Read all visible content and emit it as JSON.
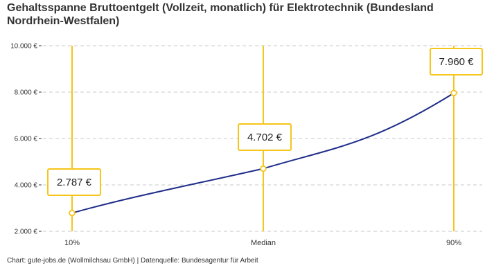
{
  "title": "Gehaltsspanne Bruttoentgelt (Vollzeit, monatlich) für Elektrotechnik (Bundesland Nordrhein-Westfalen)",
  "source": "Chart: gute-jobs.de (Wollmilchsau GmbH) | Datenquelle: Bundesagentur für Arbeit",
  "colors": {
    "line": "#1f2d8a",
    "accent": "#f5c518",
    "grid": "#c8c8c8",
    "axis": "#333333"
  },
  "chart_data": {
    "type": "line",
    "categories": [
      "10%",
      "Median",
      "90%"
    ],
    "values": [
      2787,
      4702,
      7960
    ],
    "value_labels": [
      "2.787 €",
      "4.702 €",
      "7.960 €"
    ],
    "ylim": [
      2000,
      10000
    ],
    "yticks": [
      2000,
      4000,
      6000,
      8000,
      10000
    ],
    "ytick_labels": [
      "2.000 €",
      "4.000 €",
      "6.000 €",
      "8.000 €",
      "10.000 €"
    ],
    "grid": true,
    "xlabel": "",
    "ylabel": ""
  }
}
